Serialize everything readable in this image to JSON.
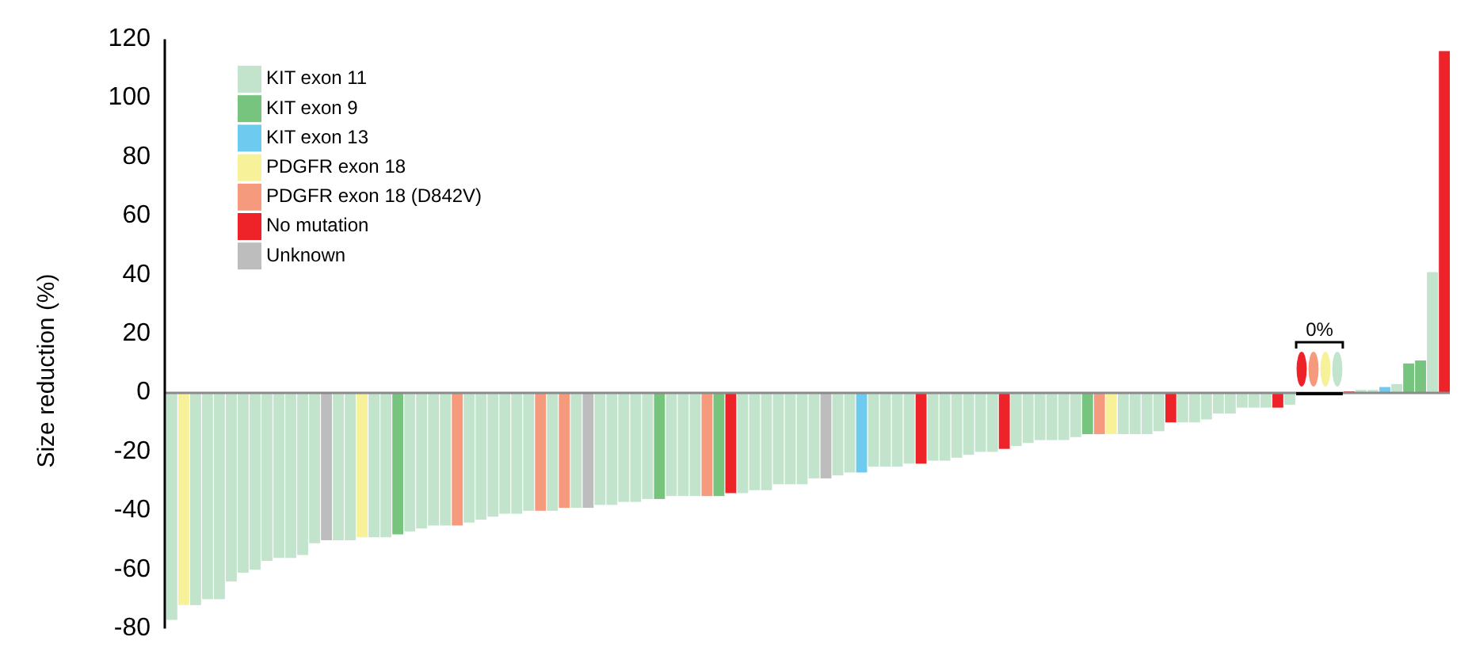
{
  "chart_data": {
    "type": "bar",
    "ylabel": "Size reduction (%)",
    "stacked": true,
    "legend": "top left",
    "tick_labels": "y",
    "ylim": [
      -80,
      120
    ],
    "yticks": [
      -80,
      -60,
      -40,
      -20,
      0,
      20,
      40,
      60,
      80,
      100,
      120
    ],
    "annotations": [
      "0%"
    ],
    "categories": [
      null,
      null,
      null,
      null,
      null,
      null,
      null,
      null,
      null,
      null,
      null,
      null,
      null,
      null,
      null,
      null,
      null,
      null,
      null,
      null,
      null,
      null,
      null,
      null,
      null,
      null,
      null,
      null,
      null,
      null,
      null,
      null,
      null,
      null,
      null,
      null,
      null,
      null,
      null,
      null,
      null,
      null,
      null,
      null,
      null,
      null,
      null,
      null,
      null,
      null,
      null,
      null,
      null,
      null,
      null,
      null,
      null,
      null,
      null,
      null,
      null,
      null,
      null,
      null,
      null,
      null,
      null,
      null,
      null,
      null,
      null,
      null,
      null,
      null,
      null,
      null,
      null,
      null,
      null,
      null,
      null,
      null,
      null,
      null,
      null,
      null,
      null,
      null,
      null,
      null,
      null,
      null,
      null,
      null,
      null,
      null,
      null,
      null,
      null,
      null,
      null,
      null,
      null,
      null,
      null,
      null,
      null,
      null
    ],
    "series": [
      {
        "name": "KIT exon 11",
        "color": "#c2e4cc",
        "values": [
          -77,
          null,
          -72,
          -70,
          -70,
          -64,
          -61,
          -60,
          -57,
          -56,
          -56,
          -55,
          -51,
          null,
          -50,
          -50,
          null,
          -49,
          -49,
          null,
          -47,
          -46,
          -45,
          -45,
          null,
          -44,
          -43,
          -42,
          -41,
          -41,
          -40,
          null,
          -40,
          null,
          -39,
          null,
          -38,
          -38,
          -37,
          -37,
          -36,
          null,
          -35,
          -35,
          -35,
          null,
          null,
          null,
          -34,
          -33,
          -33,
          -31,
          -31,
          -31,
          -29,
          null,
          -28,
          -27,
          null,
          -25,
          -25,
          -25,
          -24,
          null,
          -23,
          -23,
          -22,
          -21,
          -20,
          -20,
          null,
          -18,
          -17,
          -16,
          -16,
          -16,
          -15,
          null,
          null,
          null,
          -14,
          -14,
          -14,
          -13,
          null,
          -10,
          -10,
          -9,
          -7,
          -7,
          -5,
          -5,
          -5,
          null,
          -4,
          null,
          null,
          null,
          0,
          null,
          1,
          1,
          null,
          3,
          null,
          null,
          41,
          null
        ]
      },
      {
        "name": "KIT exon 9",
        "color": "#77c47f",
        "values": [
          null,
          null,
          null,
          null,
          null,
          null,
          null,
          null,
          null,
          null,
          null,
          null,
          null,
          null,
          null,
          null,
          null,
          null,
          null,
          -48,
          null,
          null,
          null,
          null,
          null,
          null,
          null,
          null,
          null,
          null,
          null,
          null,
          null,
          null,
          null,
          null,
          null,
          null,
          null,
          null,
          null,
          -36,
          null,
          null,
          null,
          null,
          -35,
          null,
          null,
          null,
          null,
          null,
          null,
          null,
          null,
          null,
          null,
          null,
          null,
          null,
          null,
          null,
          null,
          null,
          null,
          null,
          null,
          null,
          null,
          null,
          null,
          null,
          null,
          null,
          null,
          null,
          null,
          -14,
          null,
          null,
          null,
          null,
          null,
          null,
          null,
          null,
          null,
          null,
          null,
          null,
          null,
          null,
          null,
          null,
          null,
          null,
          null,
          null,
          null,
          null,
          null,
          null,
          null,
          null,
          10,
          11,
          null,
          null
        ]
      },
      {
        "name": "KIT exon 13",
        "color": "#6dcbf0",
        "values": [
          null,
          null,
          null,
          null,
          null,
          null,
          null,
          null,
          null,
          null,
          null,
          null,
          null,
          null,
          null,
          null,
          null,
          null,
          null,
          null,
          null,
          null,
          null,
          null,
          null,
          null,
          null,
          null,
          null,
          null,
          null,
          null,
          null,
          null,
          null,
          null,
          null,
          null,
          null,
          null,
          null,
          null,
          null,
          null,
          null,
          null,
          null,
          null,
          null,
          null,
          null,
          null,
          null,
          null,
          null,
          null,
          null,
          null,
          -27,
          null,
          null,
          null,
          null,
          null,
          null,
          null,
          null,
          null,
          null,
          null,
          null,
          null,
          null,
          null,
          null,
          null,
          null,
          null,
          null,
          null,
          null,
          null,
          null,
          null,
          null,
          null,
          null,
          null,
          null,
          null,
          null,
          null,
          null,
          null,
          null,
          null,
          null,
          null,
          null,
          null,
          null,
          null,
          2,
          null,
          null,
          null,
          null,
          null
        ]
      },
      {
        "name": "PDGFR exon 18",
        "color": "#f7f29a",
        "values": [
          null,
          -72,
          null,
          null,
          null,
          null,
          null,
          null,
          null,
          null,
          null,
          null,
          null,
          null,
          null,
          null,
          -49,
          null,
          null,
          null,
          null,
          null,
          null,
          null,
          null,
          null,
          null,
          null,
          null,
          null,
          null,
          null,
          null,
          null,
          null,
          null,
          null,
          null,
          null,
          null,
          null,
          null,
          null,
          null,
          null,
          null,
          null,
          null,
          null,
          null,
          null,
          null,
          null,
          null,
          null,
          null,
          null,
          null,
          null,
          null,
          null,
          null,
          null,
          null,
          null,
          null,
          null,
          null,
          null,
          null,
          null,
          null,
          null,
          null,
          null,
          null,
          null,
          null,
          null,
          -14,
          null,
          null,
          null,
          null,
          null,
          null,
          null,
          null,
          null,
          null,
          null,
          null,
          null,
          null,
          null,
          null,
          null,
          0,
          null,
          null,
          null,
          null,
          null,
          null,
          null,
          null,
          null,
          null
        ]
      },
      {
        "name": "PDGFR exon 18 (D842V)",
        "color": "#f59a7c",
        "values": [
          null,
          null,
          null,
          null,
          null,
          null,
          null,
          null,
          null,
          null,
          null,
          null,
          null,
          null,
          null,
          null,
          null,
          null,
          null,
          null,
          null,
          null,
          null,
          null,
          -45,
          null,
          null,
          null,
          null,
          null,
          null,
          -40,
          null,
          -39,
          null,
          null,
          null,
          null,
          null,
          null,
          null,
          null,
          null,
          null,
          null,
          -35,
          null,
          null,
          null,
          null,
          null,
          null,
          null,
          null,
          null,
          null,
          null,
          null,
          null,
          null,
          null,
          null,
          null,
          null,
          null,
          null,
          null,
          null,
          null,
          null,
          null,
          null,
          null,
          null,
          null,
          null,
          null,
          null,
          -14,
          null,
          null,
          null,
          null,
          null,
          null,
          null,
          null,
          null,
          null,
          null,
          null,
          null,
          null,
          null,
          null,
          null,
          0,
          null,
          null,
          null,
          null,
          null,
          null,
          null,
          null,
          null,
          null,
          null
        ]
      },
      {
        "name": "No mutation",
        "color": "#ee2229",
        "values": [
          null,
          null,
          null,
          null,
          null,
          null,
          null,
          null,
          null,
          null,
          null,
          null,
          null,
          null,
          null,
          null,
          null,
          null,
          null,
          null,
          null,
          null,
          null,
          null,
          null,
          null,
          null,
          null,
          null,
          null,
          null,
          null,
          null,
          null,
          null,
          null,
          null,
          null,
          null,
          null,
          null,
          null,
          null,
          null,
          null,
          null,
          null,
          -34,
          null,
          null,
          null,
          null,
          null,
          null,
          null,
          null,
          null,
          null,
          null,
          null,
          null,
          null,
          null,
          -24,
          null,
          null,
          null,
          null,
          null,
          null,
          -19,
          null,
          null,
          null,
          null,
          null,
          null,
          null,
          null,
          null,
          null,
          null,
          null,
          null,
          -10,
          null,
          null,
          null,
          null,
          null,
          null,
          null,
          null,
          -5,
          null,
          0,
          null,
          null,
          null,
          0.5,
          null,
          null,
          null,
          null,
          null,
          null,
          null,
          116
        ]
      },
      {
        "name": "Unknown",
        "color": "#bdbdbd",
        "values": [
          null,
          null,
          null,
          null,
          null,
          null,
          null,
          null,
          null,
          null,
          null,
          null,
          null,
          -50,
          null,
          null,
          null,
          null,
          null,
          null,
          null,
          null,
          null,
          null,
          null,
          null,
          null,
          null,
          null,
          null,
          null,
          null,
          null,
          null,
          null,
          -39,
          null,
          null,
          null,
          null,
          null,
          null,
          null,
          null,
          null,
          null,
          null,
          null,
          null,
          null,
          null,
          null,
          null,
          null,
          null,
          -29,
          null,
          null,
          null,
          null,
          null,
          null,
          null,
          null,
          null,
          null,
          null,
          null,
          null,
          null,
          null,
          null,
          null,
          null,
          null,
          null,
          null,
          null,
          null,
          null,
          null,
          null,
          null,
          null,
          null,
          null,
          null,
          null,
          null,
          null,
          null,
          null,
          null,
          null,
          null,
          null,
          null,
          null,
          null,
          null,
          null,
          null,
          null,
          null,
          null,
          null,
          null,
          null
        ]
      }
    ]
  }
}
